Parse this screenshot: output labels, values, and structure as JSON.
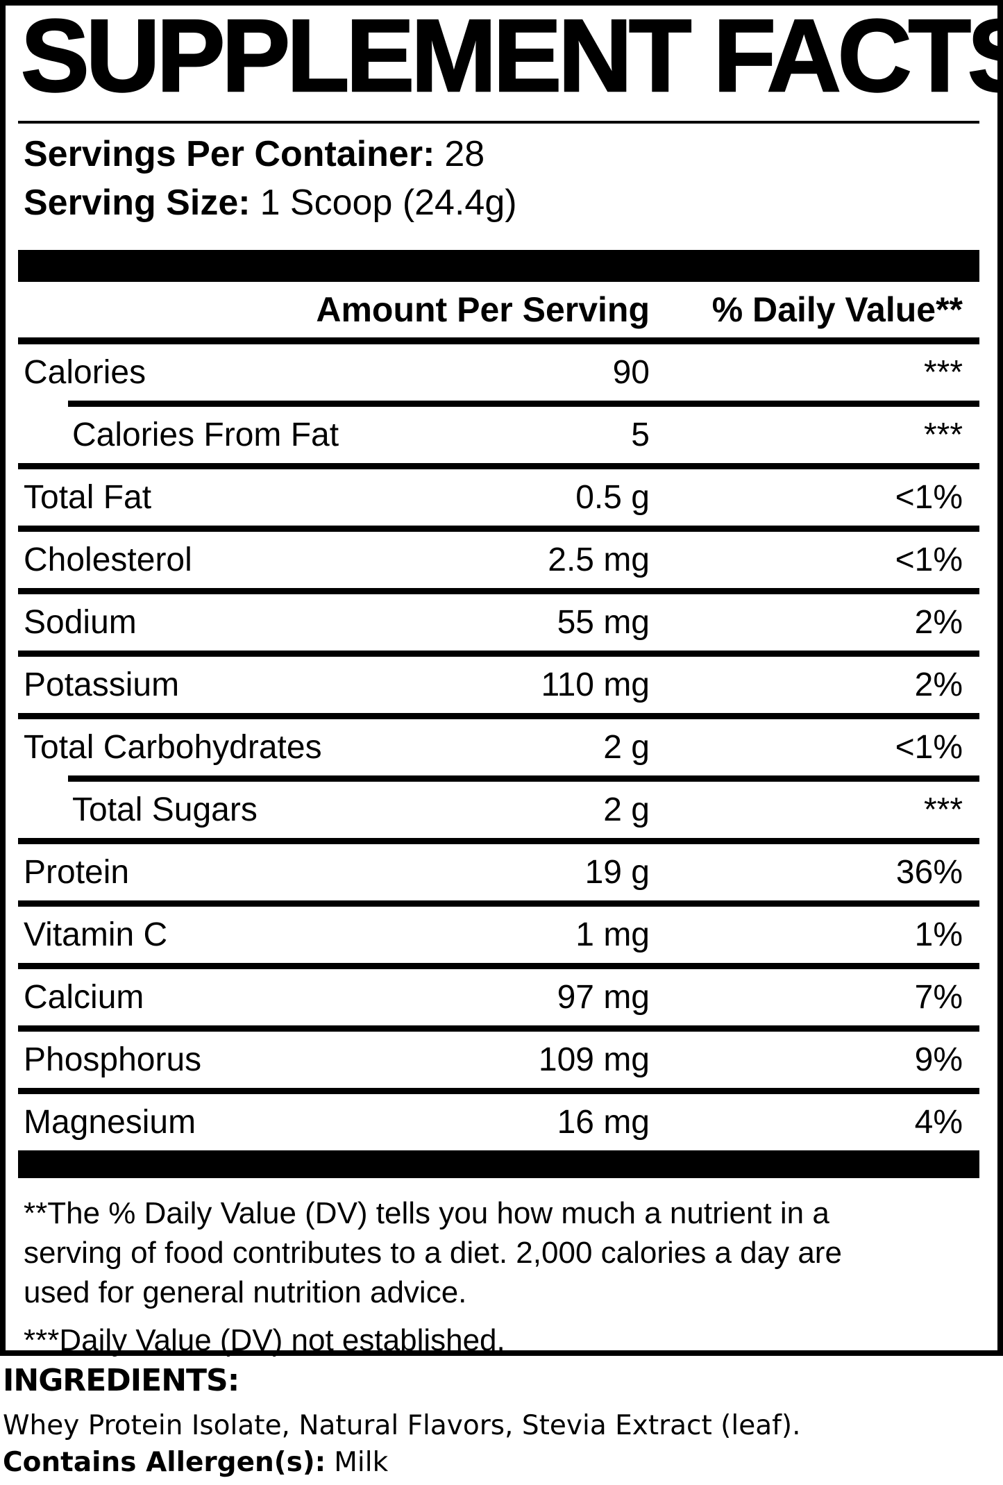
{
  "label": {
    "title": "SUPPLEMENT FACTS",
    "servings_per_container": {
      "label": "Servings Per Container:",
      "value": "28"
    },
    "serving_size": {
      "label": "Serving Size:",
      "value": "1 Scoop (24.4g)"
    },
    "table": {
      "header": {
        "amount": "Amount Per Serving",
        "dv": "% Daily Value**"
      },
      "rows": [
        {
          "name": "Calories",
          "amount": "90",
          "dv": "***",
          "indent": false
        },
        {
          "name": "Calories From Fat",
          "amount": "5",
          "dv": "***",
          "indent": true
        },
        {
          "name": "Total Fat",
          "amount": "0.5 g",
          "dv": "<1%",
          "indent": false
        },
        {
          "name": "Cholesterol",
          "amount": "2.5 mg",
          "dv": "<1%",
          "indent": false
        },
        {
          "name": "Sodium",
          "amount": "55 mg",
          "dv": "2%",
          "indent": false
        },
        {
          "name": "Potassium",
          "amount": "110 mg",
          "dv": "2%",
          "indent": false
        },
        {
          "name": "Total Carbohydrates",
          "amount": "2 g",
          "dv": "<1%",
          "indent": false
        },
        {
          "name": "Total Sugars",
          "amount": "2 g",
          "dv": "***",
          "indent": true
        },
        {
          "name": "Protein",
          "amount": "19 g",
          "dv": "36%",
          "indent": false
        },
        {
          "name": "Vitamin C",
          "amount": "1 mg",
          "dv": "1%",
          "indent": false
        },
        {
          "name": "Calcium",
          "amount": "97 mg",
          "dv": "7%",
          "indent": false
        },
        {
          "name": "Phosphorus",
          "amount": "109 mg",
          "dv": "9%",
          "indent": false
        },
        {
          "name": "Magnesium",
          "amount": "16 mg",
          "dv": "4%",
          "indent": false
        }
      ]
    },
    "footnotes": {
      "dv_lines": [
        "**The % Daily Value (DV) tells you how much a nutrient in a",
        "serving of food contributes to a diet. 2,000 calories a day are",
        "used for general nutrition advice."
      ],
      "not_established": "***Daily Value (DV) not established."
    }
  },
  "ingredients": {
    "heading": "INGREDIENTS:",
    "list": "Whey Protein Isolate, Natural Flavors, Stevia Extract (leaf).",
    "allergen_label": "Contains Allergen(s):",
    "allergen_value": "Milk"
  },
  "colors": {
    "ink": "#000000",
    "paper": "#ffffff"
  }
}
